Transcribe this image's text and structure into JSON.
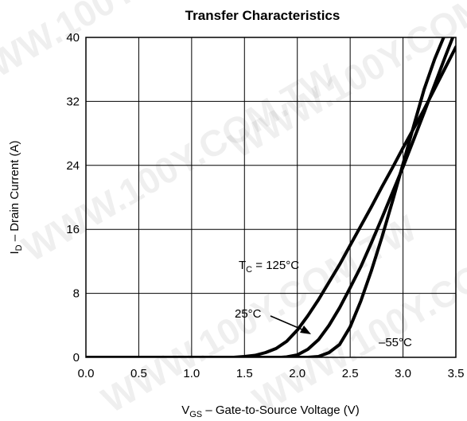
{
  "chart_data": {
    "type": "line",
    "title": "Transfer Characteristics",
    "xlabel_main": "V",
    "xlabel_sub": "GS",
    "xlabel_rest": " – Gate-to-Source Voltage (V)",
    "ylabel_main": "I",
    "ylabel_sub": "D",
    "ylabel_rest": " – Drain Current (A)",
    "xlim": [
      0,
      3.5
    ],
    "ylim": [
      0,
      40
    ],
    "xticks": [
      "0.0",
      "0.5",
      "1.0",
      "1.5",
      "2.0",
      "2.5",
      "3.0",
      "3.5"
    ],
    "yticks": [
      "0",
      "8",
      "16",
      "24",
      "32",
      "40"
    ],
    "grid": true,
    "series": [
      {
        "name": "T_C = 125°C",
        "x": [
          0.0,
          1.4,
          1.5,
          1.6,
          1.7,
          1.8,
          1.9,
          2.0,
          2.1,
          2.2,
          2.3,
          2.4,
          2.5,
          2.6,
          2.7,
          2.8,
          2.9,
          3.0,
          3.1,
          3.2,
          3.3,
          3.4,
          3.5
        ],
        "values": [
          0,
          0,
          0.1,
          0.25,
          0.6,
          1.1,
          2.0,
          3.4,
          5.2,
          7.2,
          9.4,
          11.6,
          14.0,
          16.4,
          18.8,
          21.3,
          23.7,
          26.2,
          28.6,
          31.0,
          33.6,
          36.2,
          38.8
        ]
      },
      {
        "name": "25°C",
        "x": [
          0.0,
          1.85,
          1.9,
          2.0,
          2.1,
          2.2,
          2.3,
          2.4,
          2.5,
          2.6,
          2.7,
          2.8,
          2.9,
          3.0,
          3.1,
          3.2,
          3.3,
          3.4,
          3.5
        ],
        "values": [
          0,
          0,
          0.05,
          0.3,
          1.0,
          2.2,
          4.0,
          6.2,
          8.7,
          11.3,
          14.3,
          17.4,
          20.6,
          23.8,
          27.2,
          30.6,
          34.1,
          37.6,
          41.0
        ]
      },
      {
        "name": "–55°C",
        "x": [
          0.0,
          2.1,
          2.2,
          2.3,
          2.4,
          2.5,
          2.6,
          2.7,
          2.8,
          2.9,
          3.0,
          3.1,
          3.2,
          3.3,
          3.4,
          3.45
        ],
        "values": [
          0,
          0,
          0.1,
          0.6,
          1.6,
          3.8,
          7.0,
          10.8,
          15.0,
          19.5,
          24.2,
          28.9,
          33.5,
          37.3,
          40.5,
          42.0
        ]
      }
    ],
    "annotations": {
      "tc_main": "T",
      "tc_sub": "C",
      "tc_rest": " = 125°C",
      "t25": "25°C",
      "tm55": "–55°C"
    }
  },
  "watermark": "WWW.100Y.COM.TW"
}
